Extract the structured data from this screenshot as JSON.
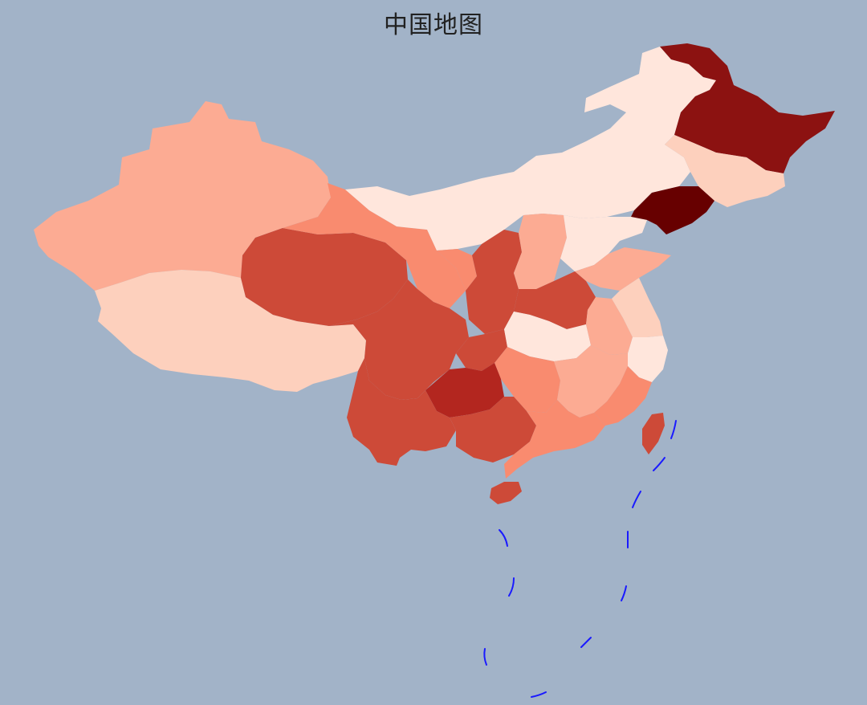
{
  "map": {
    "title": "中国地图",
    "background_color": "#a2b3c8",
    "dash_line_color": "#1a1aff",
    "color_scale": [
      "#ffe6dc",
      "#fdd0bd",
      "#fcab93",
      "#f98b6f",
      "#cd4a38",
      "#b3261f",
      "#8c1211",
      "#670000"
    ],
    "regions": [
      {
        "name": "xinjiang",
        "color": "#fcab93"
      },
      {
        "name": "xizang",
        "color": "#fdd0bd"
      },
      {
        "name": "qinghai",
        "color": "#cd4a38"
      },
      {
        "name": "gansu",
        "color": "#f98b6f"
      },
      {
        "name": "neimenggu",
        "color": "#ffe6dc"
      },
      {
        "name": "heilongjiang",
        "color": "#8c1211"
      },
      {
        "name": "jilin",
        "color": "#fdd0bd"
      },
      {
        "name": "liaoning",
        "color": "#670000"
      },
      {
        "name": "ningxia",
        "color": "#f98b6f"
      },
      {
        "name": "shaanxi",
        "color": "#cd4a38"
      },
      {
        "name": "shanxi",
        "color": "#fcab93"
      },
      {
        "name": "hebei",
        "color": "#ffe6dc"
      },
      {
        "name": "shandong",
        "color": "#fcab93"
      },
      {
        "name": "henan",
        "color": "#cd4a38"
      },
      {
        "name": "sichuan",
        "color": "#cd4a38"
      },
      {
        "name": "chongqing",
        "color": "#cd4a38"
      },
      {
        "name": "hubei",
        "color": "#ffe6dc"
      },
      {
        "name": "anhui",
        "color": "#fcab93"
      },
      {
        "name": "jiangsu",
        "color": "#fdd0bd"
      },
      {
        "name": "zhejiang",
        "color": "#ffe6dc"
      },
      {
        "name": "hunan",
        "color": "#f98b6f"
      },
      {
        "name": "jiangxi",
        "color": "#fcab93"
      },
      {
        "name": "fujian",
        "color": "#f98b6f"
      },
      {
        "name": "guizhou",
        "color": "#b3261f"
      },
      {
        "name": "yunnan",
        "color": "#cd4a38"
      },
      {
        "name": "guangxi",
        "color": "#cd4a38"
      },
      {
        "name": "guangdong",
        "color": "#f98b6f"
      },
      {
        "name": "hainan",
        "color": "#cd4a38"
      },
      {
        "name": "taiwan",
        "color": "#cd4a38"
      }
    ]
  }
}
